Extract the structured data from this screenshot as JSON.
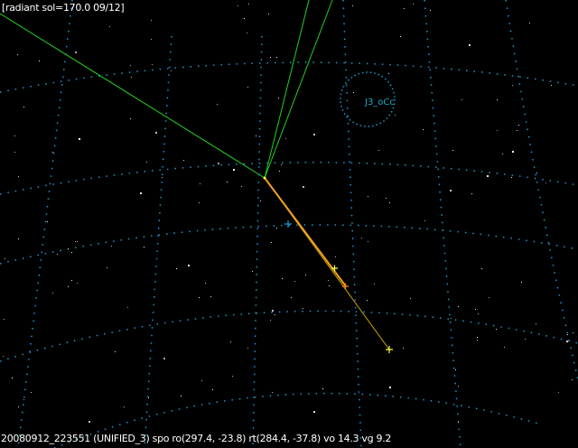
{
  "header": {
    "title": "[radiant sol=170.0 09/12]"
  },
  "status": {
    "text": "20080912_223551 (UNIFIED_3) spo ro(297.4, -23.8) rt(284.4, -37.8) vo 14.3 vg 9.2"
  },
  "shower_label": "J3_oCc",
  "colors": {
    "background": "#000000",
    "grid": "#1a9bd0",
    "radiant_lines": "#22d022",
    "meteor_track": "#f0a020",
    "marker": "#ffff40",
    "shower_circle": "#1a9bd0"
  }
}
